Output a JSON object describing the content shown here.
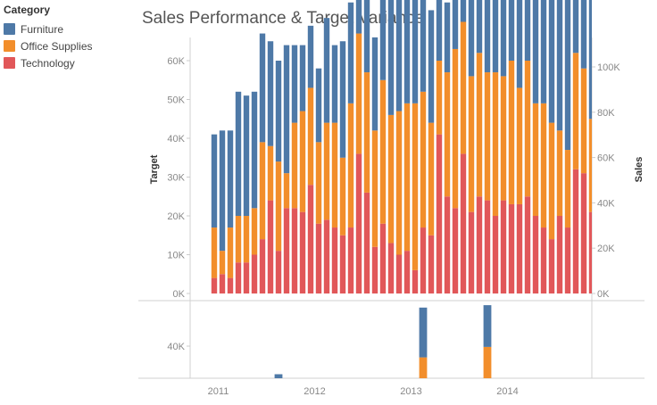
{
  "title": "Sales Performance & Target Variance",
  "legend": {
    "title": "Category",
    "items": [
      {
        "label": "Furniture",
        "color": "#4e79a7"
      },
      {
        "label": "Office Supplies",
        "color": "#f28e2b"
      },
      {
        "label": "Technology",
        "color": "#e15759"
      }
    ]
  },
  "chart_data": [
    {
      "type": "bar",
      "stacked": true,
      "title": "Sales Performance & Target Variance",
      "ylabel_left": "Target",
      "ylabel_right": "Sales",
      "left_ticks": [
        "0K",
        "10K",
        "20K",
        "30K",
        "40K",
        "50K",
        "60K"
      ],
      "right_ticks": [
        "0K",
        "20K",
        "40K",
        "60K",
        "80K",
        "100K"
      ],
      "ylim": [
        0,
        103000
      ],
      "x_tick_labels": [
        "2011",
        "2012",
        "2013",
        "2014"
      ],
      "grid": false,
      "legend_position": "top-left",
      "months": 48,
      "series": [
        {
          "name": "Technology",
          "color": "#e15759",
          "values": [
            4,
            5,
            4,
            8,
            8,
            10,
            14,
            24,
            11,
            22,
            22,
            21,
            28,
            18,
            19,
            17,
            15,
            17,
            36,
            26,
            12,
            18,
            13,
            10,
            11,
            6,
            17,
            15,
            41,
            25,
            22,
            36,
            21,
            25,
            24,
            20,
            24,
            23,
            23,
            25,
            20,
            17,
            14,
            20,
            17,
            32,
            31,
            21
          ]
        },
        {
          "name": "Office Supplies",
          "color": "#f28e2b",
          "values": [
            13,
            6,
            13,
            12,
            12,
            12,
            25,
            14,
            23,
            9,
            22,
            26,
            25,
            21,
            25,
            27,
            20,
            32,
            31,
            31,
            30,
            37,
            33,
            37,
            38,
            43,
            35,
            29,
            19,
            32,
            41,
            34,
            35,
            37,
            33,
            37,
            32,
            37,
            30,
            35,
            29,
            32,
            30,
            22,
            20,
            30,
            27,
            24
          ]
        },
        {
          "name": "Furniture",
          "color": "#4e79a7",
          "values": [
            24,
            31,
            25,
            32,
            31,
            30,
            28,
            27,
            26,
            33,
            20,
            17,
            16,
            19,
            27,
            20,
            30,
            26,
            20,
            31,
            24,
            24,
            32,
            36,
            36,
            33,
            32,
            29,
            34,
            18,
            28,
            18,
            33,
            33,
            35,
            36,
            37,
            38,
            44,
            41,
            42,
            40,
            48,
            52,
            56,
            30,
            33,
            51
          ]
        }
      ]
    },
    {
      "type": "bar",
      "stacked": true,
      "left_ticks": [
        "40K"
      ],
      "series": [
        {
          "name": "Office Supplies",
          "color": "#f28e2b",
          "values": [
            {
              "month": 26,
              "value": 26
            },
            {
              "month": 34,
              "value": 39
            }
          ]
        },
        {
          "name": "Furniture",
          "color": "#4e79a7",
          "values": [
            {
              "month": 8,
              "value": 5
            },
            {
              "month": 26,
              "value": 62
            },
            {
              "month": 34,
              "value": 52
            }
          ]
        }
      ]
    }
  ]
}
